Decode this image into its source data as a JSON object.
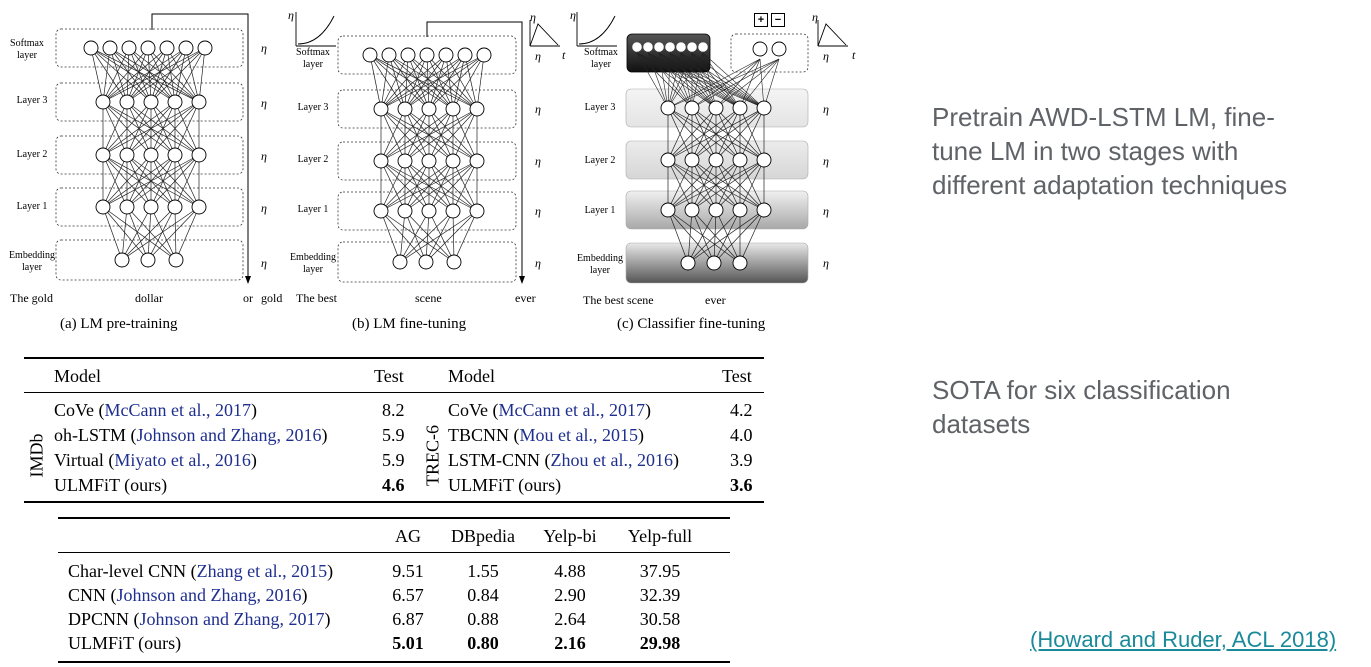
{
  "figure": {
    "panels": [
      {
        "caption": "(a) LM pre-training",
        "layers": [
          "Softmax layer",
          "Layer 3",
          "Layer 2",
          "Layer 1",
          "Embedding layer"
        ],
        "eta_label": "η",
        "words": [
          "The gold",
          "dollar",
          "or",
          "gold"
        ]
      },
      {
        "caption": "(b) LM fine-tuning",
        "layers": [
          "Softmax layer",
          "Layer 3",
          "Layer 2",
          "Layer 1",
          "Embedding layer"
        ],
        "eta_label": "η",
        "words": [
          "The best",
          "scene",
          "ever"
        ]
      },
      {
        "caption": "(c) Classifier fine-tuning",
        "layers": [
          "Softmax layer",
          "Layer 3",
          "Layer 2",
          "Layer 1",
          "Embedding layer"
        ],
        "eta_label": "η",
        "words": [
          "The best scene",
          "ever"
        ]
      }
    ],
    "plus_minus": [
      "+",
      "−"
    ],
    "t_label": "t"
  },
  "notes": {
    "line1": "Pretrain AWD-LSTM LM, fine-",
    "line2": "tune LM in two stages with",
    "line3": "different adaptation techniques",
    "sota1": "SOTA for six classification",
    "sota2": "datasets",
    "citation": "(Howard and Ruder, ACL 2018)"
  },
  "table1": {
    "header": {
      "model": "Model",
      "test": "Test"
    },
    "imdb_label": "IMDb",
    "trec_label": "TREC-6",
    "imdb_rows": [
      {
        "name": "CoVe",
        "ref": "McCann et al., 2017",
        "test": "8.2"
      },
      {
        "name": "oh-LSTM",
        "ref": "Johnson and Zhang, 2016",
        "test": "5.9"
      },
      {
        "name": "Virtual",
        "ref": "Miyato et al., 2016",
        "test": "5.9"
      },
      {
        "name": "ULMFiT (ours)",
        "ref": "",
        "test": "4.6"
      }
    ],
    "trec_rows": [
      {
        "name": "CoVe",
        "ref": "McCann et al., 2017",
        "test": "4.2"
      },
      {
        "name": "TBCNN",
        "ref": "Mou et al., 2015",
        "test": "4.0"
      },
      {
        "name": "LSTM-CNN",
        "ref": "Zhou et al., 2016",
        "test": "3.9"
      },
      {
        "name": "ULMFiT (ours)",
        "ref": "",
        "test": "3.6"
      }
    ]
  },
  "table2": {
    "columns": [
      "AG",
      "DBpedia",
      "Yelp-bi",
      "Yelp-full"
    ],
    "rows": [
      {
        "name": "Char-level CNN",
        "ref": "Zhang et al., 2015",
        "values": [
          "9.51",
          "1.55",
          "4.88",
          "37.95"
        ]
      },
      {
        "name": "CNN",
        "ref": "Johnson and Zhang, 2016",
        "values": [
          "6.57",
          "0.84",
          "2.90",
          "32.39"
        ]
      },
      {
        "name": "DPCNN",
        "ref": "Johnson and Zhang, 2017",
        "values": [
          "6.87",
          "0.88",
          "2.64",
          "30.58"
        ]
      },
      {
        "name": "ULMFiT (ours)",
        "ref": "",
        "values": [
          "5.01",
          "0.80",
          "2.16",
          "29.98"
        ]
      }
    ]
  }
}
